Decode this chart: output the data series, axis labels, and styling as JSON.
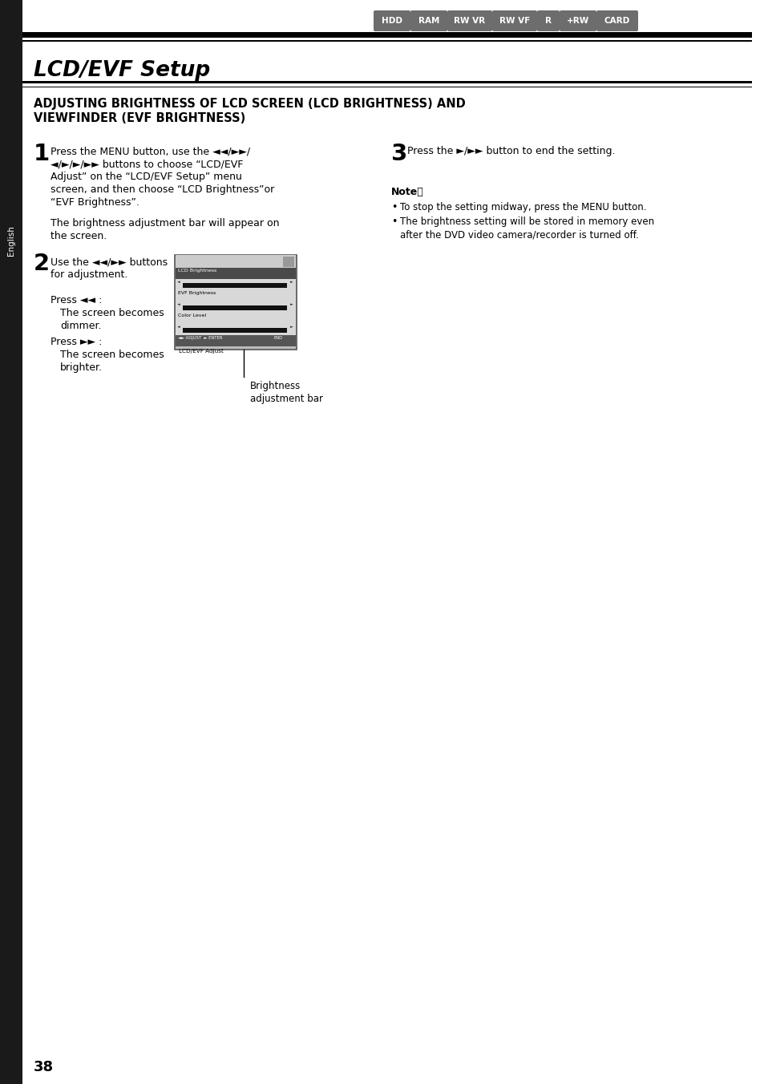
{
  "page_bg": "#ffffff",
  "page_num": "38",
  "tab_labels": [
    "HDD",
    "RAM",
    "RW VR",
    "RW VF",
    "R",
    "+RW",
    "CARD"
  ],
  "tab_color": "#6d6d6d",
  "tab_text_color": "#ffffff",
  "section_title": "LCD/EVF Setup",
  "heading_line1": "ADJUSTING BRIGHTNESS OF LCD SCREEN (LCD BRIGHTNESS) AND",
  "heading_line2": "VIEWFINDER (EVF BRIGHTNESS)",
  "sidebar_text": "English",
  "sidebar_bg": "#1a1a1a",
  "sidebar_text_color": "#ffffff",
  "step1_num": "1",
  "step1_lines": [
    "Press the MENU button, use the ◄◄/►►/",
    "◄/►/►/►► buttons to choose “LCD/EVF",
    "Adjust” on the “LCD/EVF Setup” menu",
    "screen, and then choose “LCD Brightness”or",
    "“EVF Brightness”."
  ],
  "step1_sub_lines": [
    "The brightness adjustment bar will appear on",
    "the screen."
  ],
  "step2_num": "2",
  "step2_line1": "Use the ◄◄/►► buttons",
  "step2_line2": "for adjustment.",
  "press1": "Press ◄◄ :",
  "press1_desc1": "The screen becomes",
  "press1_desc2": "dimmer.",
  "press2": "Press ►► :",
  "press2_desc1": "The screen becomes",
  "press2_desc2": "brighter.",
  "step3_num": "3",
  "step3_text": "Press the ►/►► button to end the setting.",
  "note_title": "Note：",
  "note_bullet1": "To stop the setting midway, press the MENU button.",
  "note_bullet2a": "The brightness setting will be stored in memory even",
  "note_bullet2b": "after the DVD video camera/recorder is turned off.",
  "brightness_caption1": "Brightness",
  "brightness_caption2": "adjustment bar",
  "black_bar_color": "#000000",
  "tab_widths": [
    42,
    42,
    52,
    52,
    24,
    42,
    48
  ]
}
